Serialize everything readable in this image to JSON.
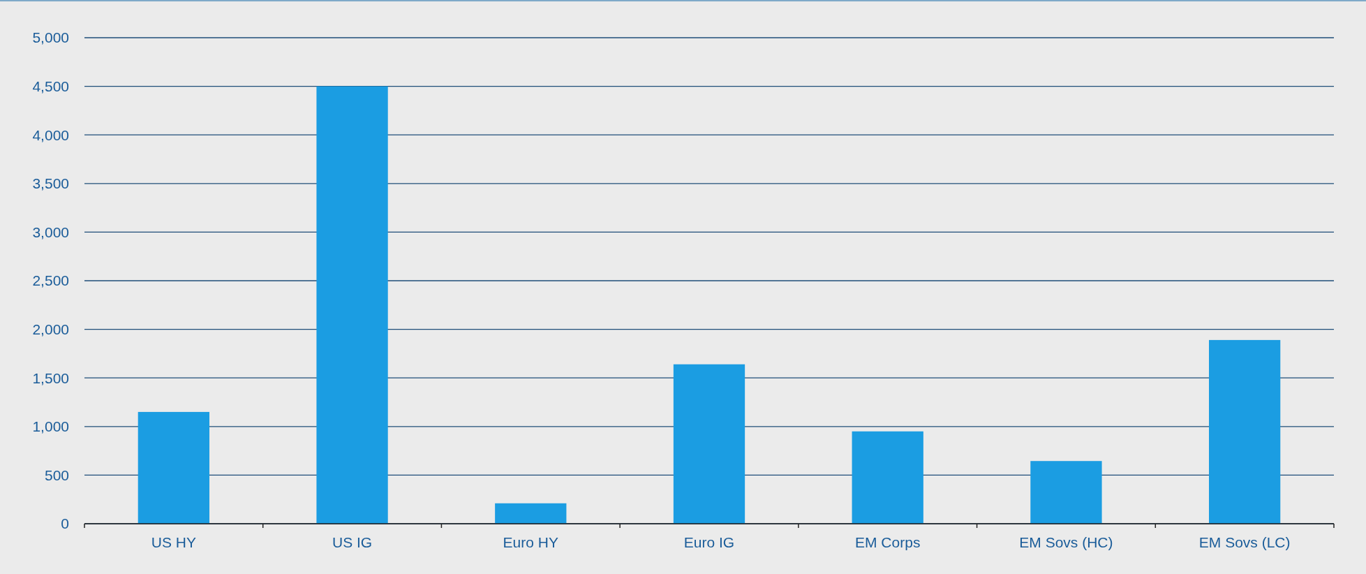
{
  "chart_data": {
    "type": "bar",
    "categories": [
      "US HY",
      "US IG",
      "Euro HY",
      "Euro IG",
      "EM Corps",
      "EM Sovs (HC)",
      "EM Sovs (LC)"
    ],
    "values": [
      1150,
      4500,
      210,
      1640,
      950,
      645,
      1890
    ],
    "color": "#1b9de2",
    "ylim": [
      0,
      5000
    ],
    "yticks": [
      {
        "value": 0,
        "label": "0"
      },
      {
        "value": 500,
        "label": "500"
      },
      {
        "value": 1000,
        "label": "1,000"
      },
      {
        "value": 1500,
        "label": "1,500"
      },
      {
        "value": 2000,
        "label": "2,000"
      },
      {
        "value": 2500,
        "label": "2,500"
      },
      {
        "value": 3000,
        "label": "3,000"
      },
      {
        "value": 3500,
        "label": "3,500"
      },
      {
        "value": 4000,
        "label": "4,000"
      },
      {
        "value": 4500,
        "label": "4,500"
      },
      {
        "value": 5000,
        "label": "5,000"
      }
    ],
    "grid": "y"
  }
}
